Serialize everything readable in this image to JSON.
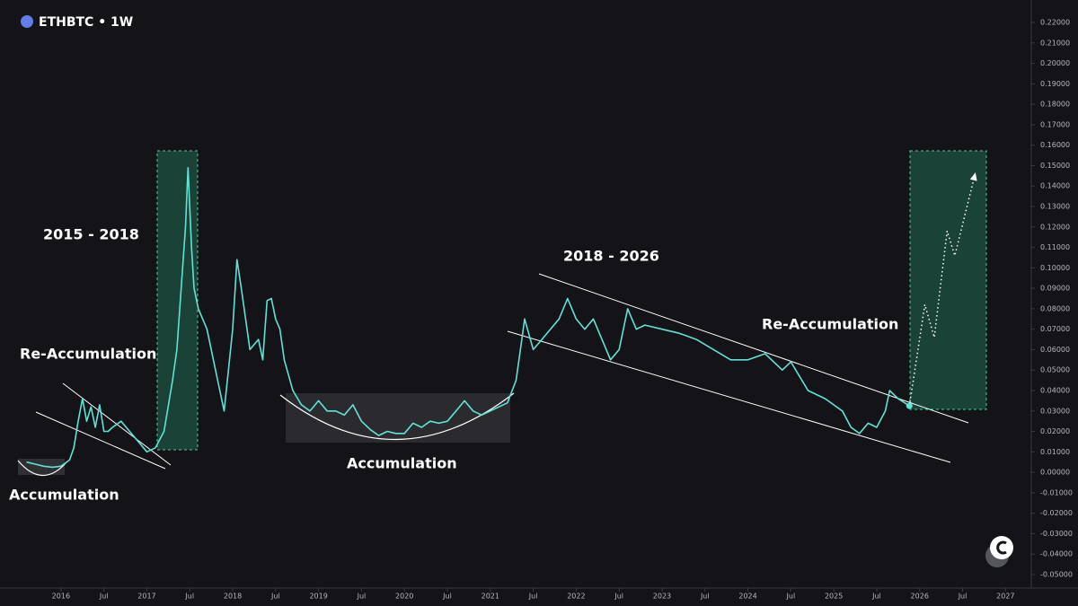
{
  "chart_data": {
    "type": "line",
    "title": "ETHBTC • 1W",
    "color": "#5fe3d6",
    "x": [
      2015.6,
      2015.7,
      2015.8,
      2015.9,
      2016.0,
      2016.1,
      2016.15,
      2016.2,
      2016.25,
      2016.3,
      2016.35,
      2016.4,
      2016.45,
      2016.5,
      2016.55,
      2016.6,
      2016.7,
      2016.8,
      2016.9,
      2017.0,
      2017.1,
      2017.2,
      2017.3,
      2017.35,
      2017.4,
      2017.45,
      2017.48,
      2017.52,
      2017.55,
      2017.6,
      2017.65,
      2017.7,
      2017.8,
      2017.85,
      2017.9,
      2017.95,
      2018.0,
      2018.05,
      2018.1,
      2018.2,
      2018.3,
      2018.35,
      2018.4,
      2018.45,
      2018.5,
      2018.55,
      2018.6,
      2018.7,
      2018.8,
      2018.9,
      2019.0,
      2019.1,
      2019.2,
      2019.3,
      2019.4,
      2019.5,
      2019.6,
      2019.7,
      2019.8,
      2019.9,
      2020.0,
      2020.1,
      2020.2,
      2020.3,
      2020.4,
      2020.5,
      2020.6,
      2020.7,
      2020.8,
      2020.9,
      2021.0,
      2021.1,
      2021.2,
      2021.3,
      2021.35,
      2021.4,
      2021.5,
      2021.6,
      2021.7,
      2021.8,
      2021.9,
      2022.0,
      2022.1,
      2022.2,
      2022.3,
      2022.4,
      2022.5,
      2022.6,
      2022.7,
      2022.8,
      2023.0,
      2023.2,
      2023.4,
      2023.6,
      2023.8,
      2024.0,
      2024.2,
      2024.4,
      2024.5,
      2024.7,
      2024.9,
      2025.1,
      2025.2,
      2025.3,
      2025.4,
      2025.5,
      2025.6,
      2025.65,
      2025.75,
      2025.88
    ],
    "values": [
      0.005,
      0.004,
      0.003,
      0.0025,
      0.003,
      0.006,
      0.012,
      0.025,
      0.036,
      0.025,
      0.032,
      0.022,
      0.033,
      0.02,
      0.02,
      0.022,
      0.025,
      0.02,
      0.015,
      0.01,
      0.012,
      0.02,
      0.045,
      0.06,
      0.09,
      0.12,
      0.149,
      0.11,
      0.09,
      0.08,
      0.075,
      0.07,
      0.05,
      0.04,
      0.03,
      0.05,
      0.07,
      0.104,
      0.09,
      0.06,
      0.065,
      0.055,
      0.084,
      0.085,
      0.075,
      0.07,
      0.055,
      0.04,
      0.033,
      0.03,
      0.035,
      0.03,
      0.03,
      0.028,
      0.033,
      0.025,
      0.021,
      0.018,
      0.02,
      0.019,
      0.019,
      0.024,
      0.022,
      0.025,
      0.024,
      0.025,
      0.03,
      0.035,
      0.03,
      0.028,
      0.03,
      0.032,
      0.034,
      0.045,
      0.06,
      0.075,
      0.06,
      0.065,
      0.07,
      0.075,
      0.085,
      0.075,
      0.07,
      0.075,
      0.065,
      0.055,
      0.06,
      0.08,
      0.07,
      0.072,
      0.07,
      0.068,
      0.065,
      0.06,
      0.055,
      0.055,
      0.058,
      0.05,
      0.054,
      0.04,
      0.036,
      0.03,
      0.022,
      0.019,
      0.024,
      0.022,
      0.03,
      0.04,
      0.036,
      0.0325
    ],
    "projection": {
      "color": "#ffffff",
      "x": [
        2025.88,
        2026.06,
        2026.17,
        2026.32,
        2026.41,
        2026.64
      ],
      "values": [
        0.0325,
        0.082,
        0.066,
        0.118,
        0.106,
        0.145
      ]
    },
    "xlim": [
      2015.29,
      2027.3
    ],
    "xticks": [
      2016,
      {
        "value": 2016.5,
        "label": "Jul"
      },
      2017,
      {
        "value": 2017.5,
        "label": "Jul"
      },
      2018,
      {
        "value": 2018.5,
        "label": "Jul"
      },
      2019,
      {
        "value": 2019.5,
        "label": "Jul"
      },
      2020,
      {
        "value": 2020.5,
        "label": "Jul"
      },
      2021,
      {
        "value": 2021.5,
        "label": "Jul"
      },
      2022,
      {
        "value": 2022.5,
        "label": "Jul"
      },
      2023,
      {
        "value": 2023.5,
        "label": "Jul"
      },
      2024,
      {
        "value": 2024.5,
        "label": "Jul"
      },
      2025,
      {
        "value": 2025.5,
        "label": "Jul"
      },
      2026,
      {
        "value": 2026.5,
        "label": "Jul"
      },
      2027
    ],
    "ylim": [
      -0.0566,
      0.231
    ],
    "yticks": [
      {
        "value": 0.22,
        "label": "0.22000"
      },
      {
        "value": 0.21,
        "label": "0.21000"
      },
      {
        "value": 0.2,
        "label": "0.20000"
      },
      {
        "value": 0.19,
        "label": "0.19000"
      },
      {
        "value": 0.18,
        "label": "0.18000"
      },
      {
        "value": 0.17,
        "label": "0.17000"
      },
      {
        "value": 0.16,
        "label": "0.16000"
      },
      {
        "value": 0.15,
        "label": "0.15000"
      },
      {
        "value": 0.14,
        "label": "0.14000"
      },
      {
        "value": 0.13,
        "label": "0.13000"
      },
      {
        "value": 0.12,
        "label": "0.12000"
      },
      {
        "value": 0.11,
        "label": "0.11000"
      },
      {
        "value": 0.1,
        "label": "0.10000"
      },
      {
        "value": 0.09,
        "label": "0.09000"
      },
      {
        "value": 0.08,
        "label": "0.08000"
      },
      {
        "value": 0.07,
        "label": "0.07000"
      },
      {
        "value": 0.06,
        "label": "0.06000"
      },
      {
        "value": 0.05,
        "label": "0.05000"
      },
      {
        "value": 0.04,
        "label": "0.04000"
      },
      {
        "value": 0.03,
        "label": "0.03000"
      },
      {
        "value": 0.02,
        "label": "0.02000"
      },
      {
        "value": 0.01,
        "label": "0.01000"
      },
      {
        "value": 0,
        "label": "0.00000"
      },
      {
        "value": -0.01,
        "label": "-0.01000"
      },
      {
        "value": -0.02,
        "label": "-0.02000"
      },
      {
        "value": -0.03,
        "label": "-0.03000"
      },
      {
        "value": -0.04,
        "label": "-0.04000"
      },
      {
        "value": -0.05,
        "label": "-0.05000"
      }
    ],
    "grid": false,
    "annotations": [
      "2015 - 2018",
      "Re-Accumulation",
      "Accumulation",
      "Accumulation",
      "2018 - 2026",
      "Re-Accumulation"
    ]
  }
}
